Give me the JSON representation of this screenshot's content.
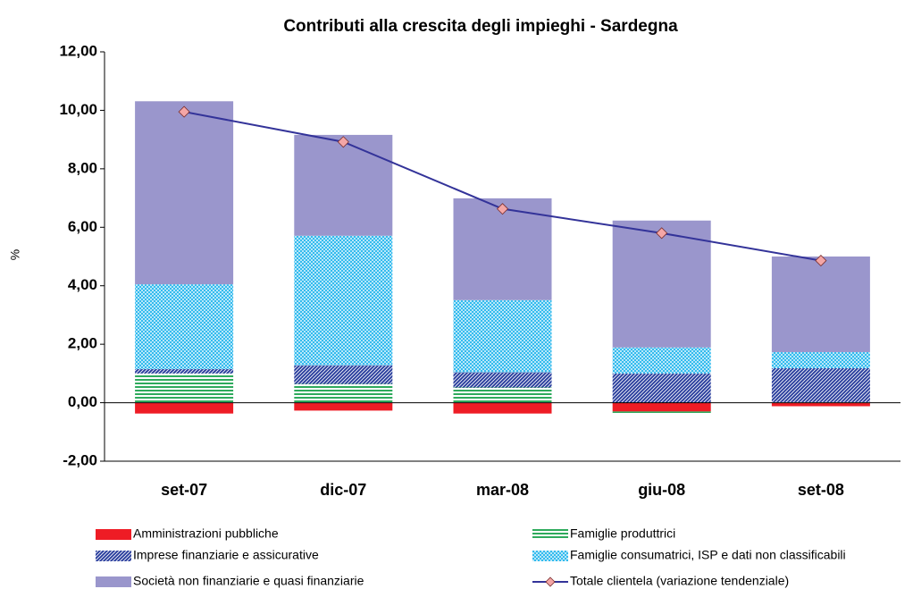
{
  "chart_data": {
    "type": "bar",
    "title": "Contributi alla crescita degli impieghi - Sardegna",
    "y_label": "%",
    "categories": [
      "set-07",
      "dic-07",
      "mar-08",
      "giu-08",
      "set-08"
    ],
    "stacked": true,
    "grid": false,
    "ylim": [
      -2,
      12
    ],
    "yticks": [
      {
        "value": -2,
        "label": "-2,00"
      },
      {
        "value": 0,
        "label": "0,00"
      },
      {
        "value": 2,
        "label": "2,00"
      },
      {
        "value": 4,
        "label": "4,00"
      },
      {
        "value": 6,
        "label": "6,00"
      },
      {
        "value": 8,
        "label": "8,00"
      },
      {
        "value": 10,
        "label": "10,00"
      },
      {
        "value": 12,
        "label": "12,00"
      }
    ],
    "series": [
      {
        "name": "Amministrazioni pubbliche",
        "color": "#ee1c25",
        "pattern": "solid",
        "values": [
          -0.37,
          -0.27,
          -0.37,
          -0.3,
          -0.12
        ]
      },
      {
        "name": "Famiglie produttrici",
        "color": "#2eaa5c",
        "pattern": "horizontal",
        "values": [
          1.0,
          0.64,
          0.52,
          -0.09,
          0.02
        ]
      },
      {
        "name": "Imprese finanziarie e assicurative",
        "color": "#2b3f9e",
        "pattern": "diagonal",
        "values": [
          0.15,
          0.64,
          0.52,
          1.0,
          1.16
        ]
      },
      {
        "name": "Famiglie consumatrici, ISP e dati non classificabili",
        "color": "#33bbee",
        "pattern": "dots",
        "values": [
          2.9,
          4.43,
          2.47,
          0.89,
          0.55
        ]
      },
      {
        "name": "Società non finanziarie e quasi finanziarie",
        "color": "#9a96cc",
        "pattern": "solid",
        "values": [
          6.26,
          3.45,
          3.48,
          4.34,
          3.27
        ]
      },
      {
        "name": "Totale clientela (variazione tendenziale)",
        "type": "line",
        "color": "#333399",
        "marker_color": "#f4a6a6",
        "values": [
          9.95,
          8.92,
          6.63,
          5.8,
          4.86
        ]
      }
    ]
  }
}
